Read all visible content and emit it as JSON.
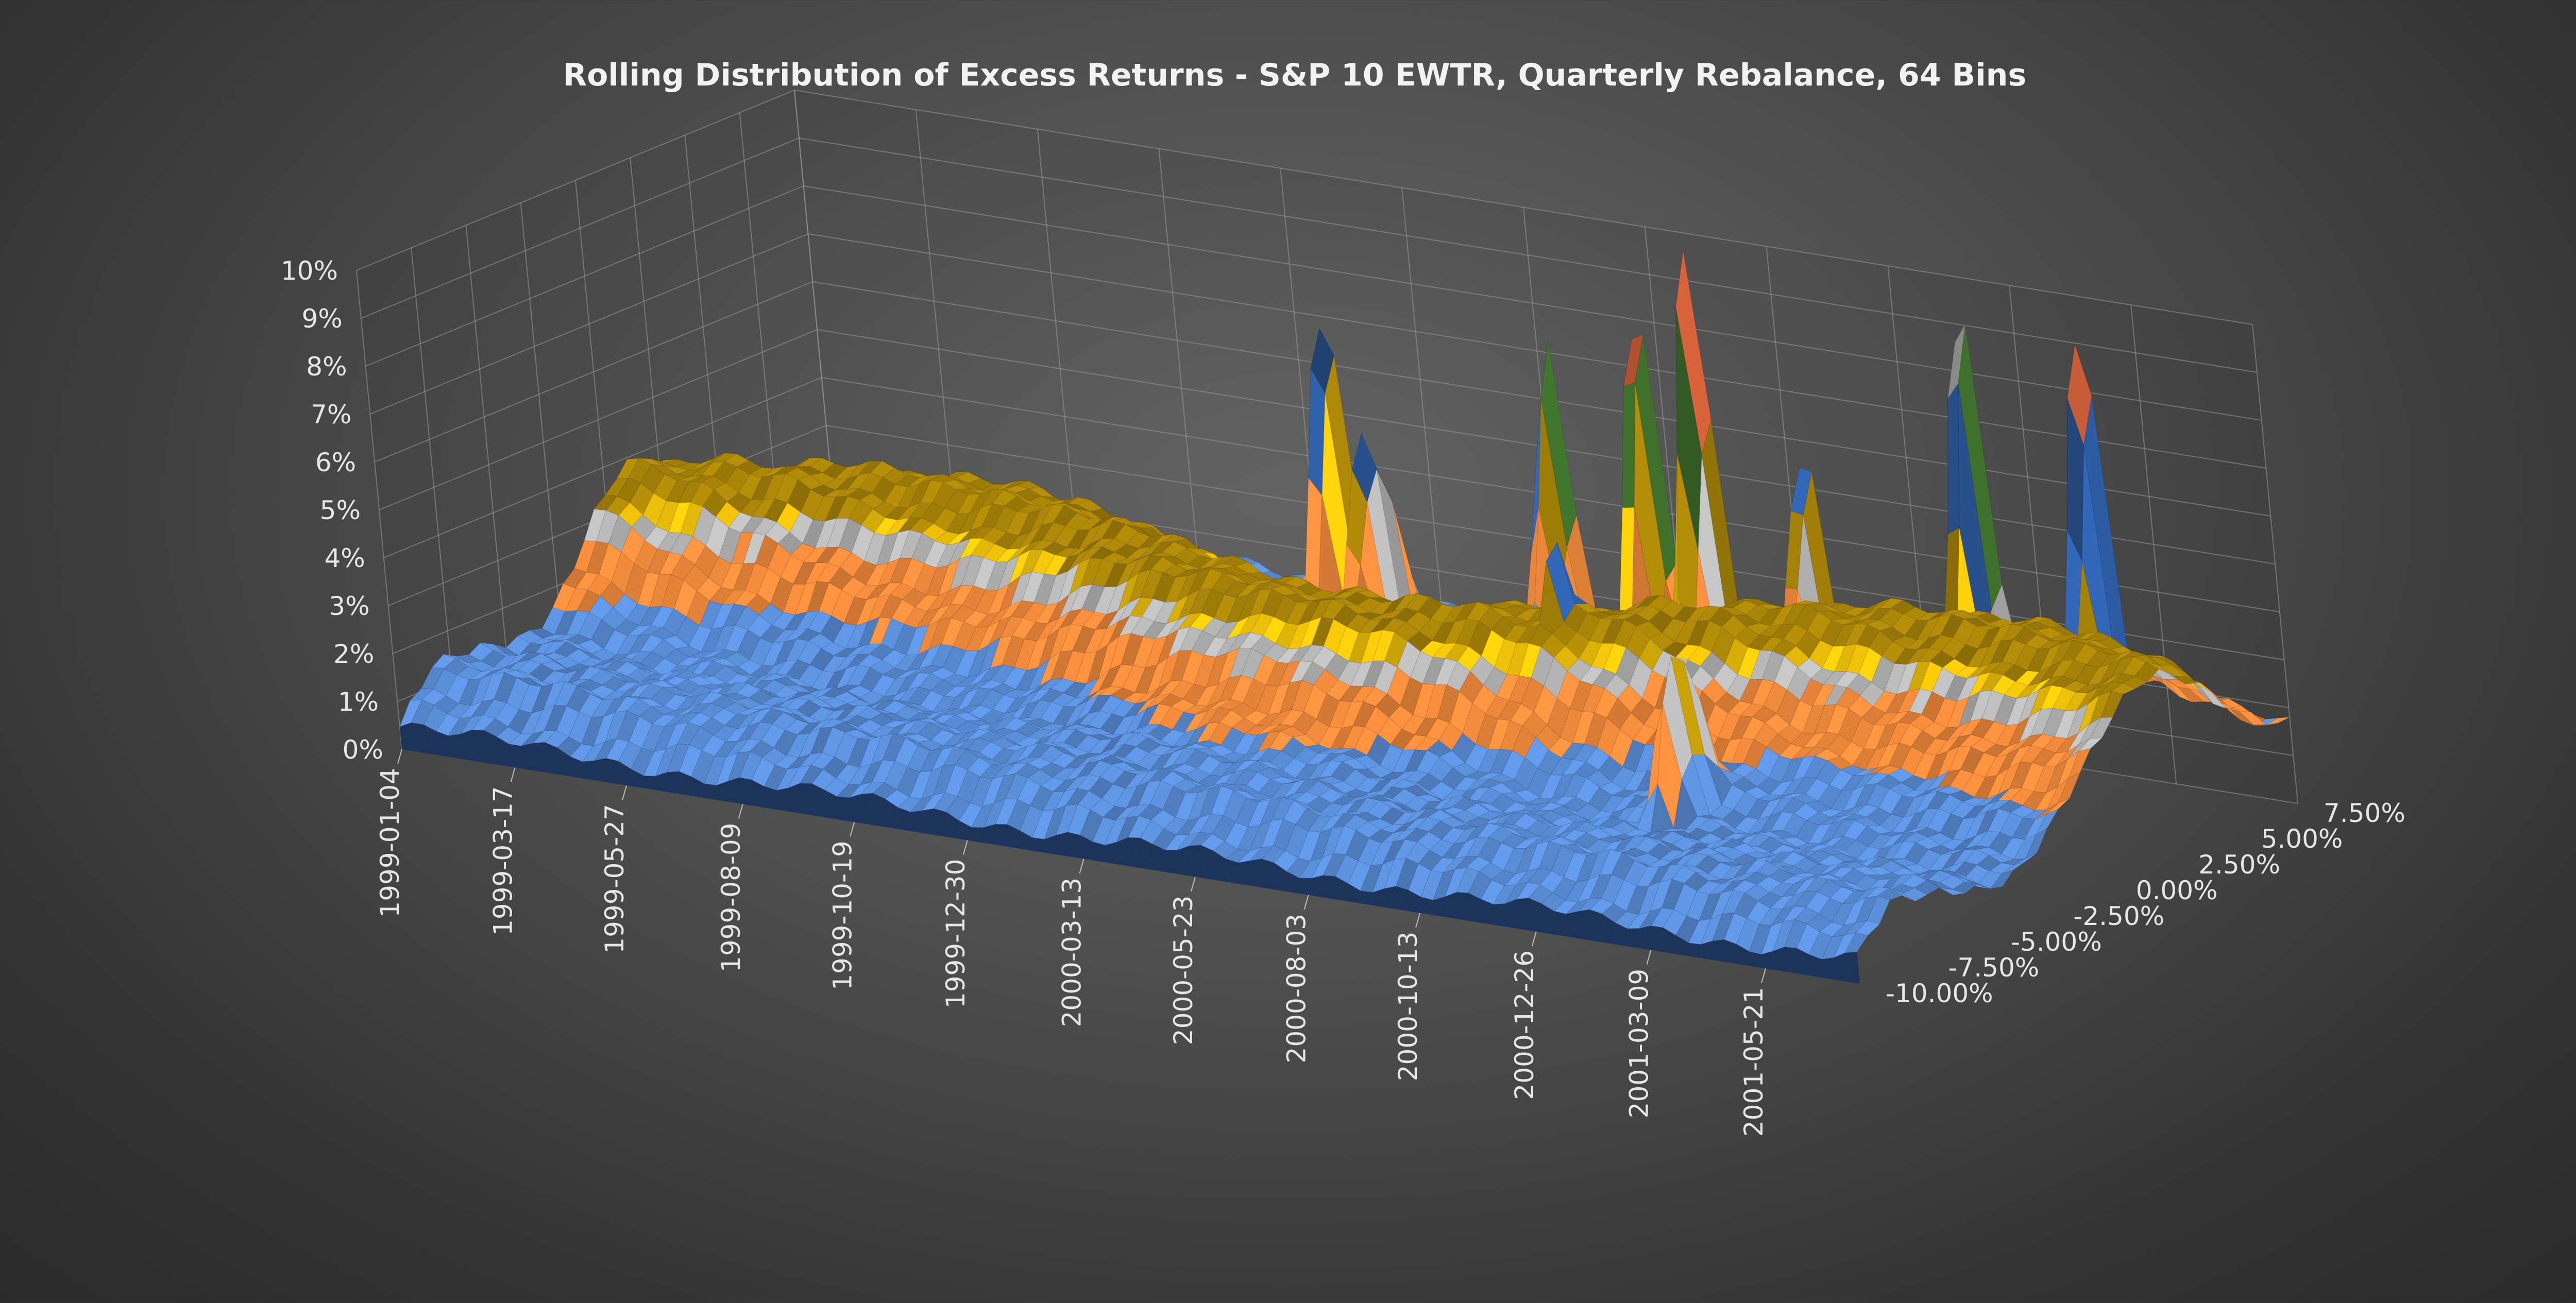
{
  "chart_data": {
    "type": "surface",
    "title": "Rolling Distribution of Excess Returns - S&P 10 EWTR, Quarterly Rebalance, 64 Bins",
    "xlabel": "",
    "ylabel": "",
    "zlabel": "",
    "date_ticks": [
      "1999-01-04",
      "1999-03-17",
      "1999-05-27",
      "1999-08-09",
      "1999-10-19",
      "1999-12-30",
      "2000-03-13",
      "2000-05-23",
      "2000-08-03",
      "2000-10-13",
      "2000-12-26",
      "2001-03-09",
      "2001-05-21"
    ],
    "return_ticks": [
      "7.50%",
      "5.00%",
      "2.50%",
      "0.00%",
      "-2.50%",
      "-5.00%",
      "-7.50%",
      "-10.00%"
    ],
    "return_values": [
      0.075,
      0.05,
      0.025,
      0.0,
      -0.025,
      -0.05,
      -0.075,
      -0.1
    ],
    "z_ticks": [
      "10%",
      "9%",
      "8%",
      "7%",
      "6%",
      "5%",
      "4%",
      "3%",
      "2%",
      "1%",
      "0%"
    ],
    "z_values": [
      0.1,
      0.09,
      0.08,
      0.07,
      0.06,
      0.05,
      0.04,
      0.03,
      0.02,
      0.01,
      0.0
    ],
    "zlim": [
      0,
      0.1
    ],
    "return_range": [
      -0.1,
      0.075
    ],
    "band_colors": [
      "#1f3a66",
      "#b55a1f",
      "#6e6e6e",
      "#a88408",
      "#2e5fa8",
      "#3c6b2a",
      "#264a80",
      "#d0603a",
      "#808080",
      "#c99a18"
    ],
    "surface_colors": [
      "#5b8fd9",
      "#f08a3c",
      "#b8b8b8",
      "#f2c40a"
    ],
    "peaks": [
      {
        "date": "1999-11-28",
        "ret": 0.075,
        "z": 0.075
      },
      {
        "date": "2000-04-18",
        "ret": 0.075,
        "z": 0.072
      },
      {
        "date": "2000-06-17",
        "ret": 0.075,
        "z": 0.087
      },
      {
        "date": "2000-07-22",
        "ret": 0.075,
        "z": 0.097
      },
      {
        "date": "2000-09-25",
        "ret": 0.075,
        "z": 0.061
      },
      {
        "date": "2001-01-12",
        "ret": 0.075,
        "z": 0.1
      },
      {
        "date": "2001-03-29",
        "ret": 0.075,
        "z": 0.097
      },
      {
        "date": "2000-02-05",
        "ret": 0.045,
        "z": 0.058
      },
      {
        "date": "2000-08-12",
        "ret": 0.0,
        "z": 0.053
      },
      {
        "date": "2000-12-14",
        "ret": -0.03,
        "z": 0.045
      }
    ],
    "grid": true
  }
}
